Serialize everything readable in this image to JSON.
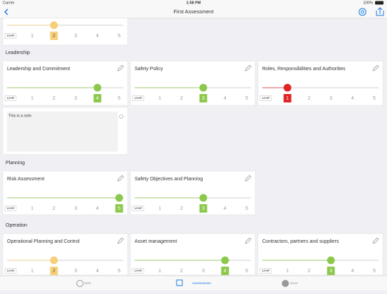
{
  "status_bar": {
    "carrier": "Carrier",
    "time": "1:58 PM",
    "battery": "100%"
  },
  "nav_bar": {
    "title": "First Assessment"
  },
  "scale": {
    "label": "Level",
    "levels": [
      1,
      2,
      3,
      4,
      5
    ]
  },
  "sections": [
    {
      "cards": [
        {
          "level": 2,
          "color": "#f7cf78"
        }
      ]
    },
    {
      "title": "Leadership",
      "cards": [
        {
          "title": "Leadership and Commitment",
          "level": 4,
          "color": "#8cc84b"
        },
        {
          "title": "Safety Policy",
          "level": 3,
          "color": "#8cc84b"
        },
        {
          "title": "Roles, Responsibilities and Authorities",
          "level": 1,
          "color": "#e02424"
        }
      ],
      "note": "This is a note."
    },
    {
      "title": "Planning",
      "cards": [
        {
          "title": "Risk Assessment",
          "level": 5,
          "color": "#8cc84b"
        },
        {
          "title": "Safety Objectives and Planning",
          "level": 3,
          "color": "#8cc84b"
        }
      ]
    },
    {
      "title": "Operation",
      "cards": [
        {
          "title": "Operational Planning and Control",
          "level": 2,
          "color": "#f7cf78"
        },
        {
          "title": "Asset management",
          "level": 4,
          "color": "#8cc84b"
        },
        {
          "title": "Contractors, partners and suppliers",
          "level": 3,
          "color": "#8cc84b"
        }
      ]
    }
  ],
  "tab_bar": {
    "tabs": [
      "SMS",
      "Assessments",
      "About"
    ],
    "active": "Assessments"
  }
}
